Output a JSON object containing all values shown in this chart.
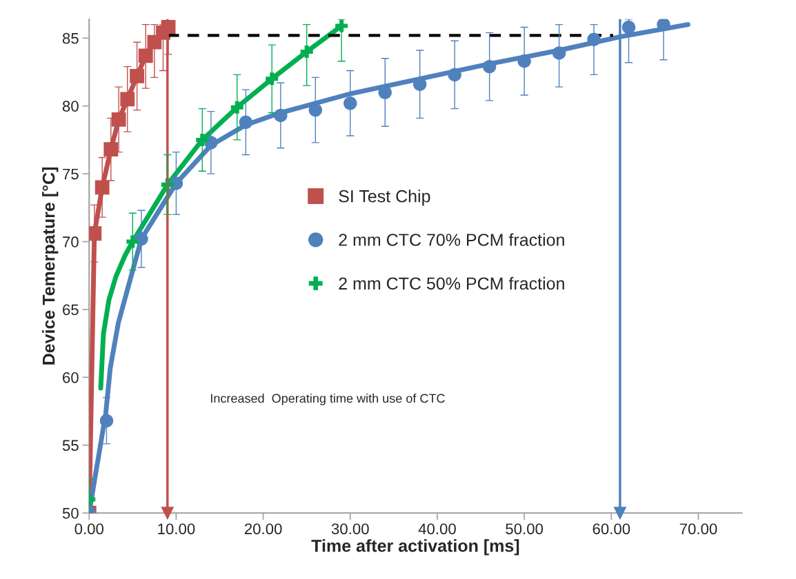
{
  "chart_data": {
    "type": "scatter",
    "xlabel": "Time after activation [ms]",
    "ylabel": "Device Temerpature [°C]",
    "xlim": [
      0,
      75
    ],
    "ylim": [
      50,
      86.4
    ],
    "xticks": [
      {
        "value": 0,
        "label": "0.00"
      },
      {
        "value": 10,
        "label": "10.00"
      },
      {
        "value": 20,
        "label": "20.00"
      },
      {
        "value": 30,
        "label": "30.00"
      },
      {
        "value": 40,
        "label": "40.00"
      },
      {
        "value": 50,
        "label": "50.00"
      },
      {
        "value": 60,
        "label": "60.00"
      },
      {
        "value": 70,
        "label": "70.00"
      }
    ],
    "yticks": [
      50,
      55,
      60,
      65,
      70,
      75,
      80,
      85
    ],
    "grid": false,
    "legend": "center",
    "series": [
      {
        "type": "line",
        "name": "SI Test Chip",
        "color": "#c0504d",
        "marker": "square",
        "line_style": "solid",
        "x": [
          0,
          0.6,
          1.5,
          2.5,
          3.4,
          4.4,
          5.5,
          6.5,
          7.5,
          8.5,
          9.1
        ],
        "values": [
          50,
          70.6,
          74.0,
          76.8,
          79.0,
          80.5,
          82.2,
          83.7,
          84.7,
          85.4,
          85.8
        ],
        "errors": [
          null,
          2.1,
          2.2,
          2.3,
          2.4,
          2.4,
          2.5,
          [
            81.3,
            86.0
          ],
          [
            82.1,
            86.0
          ],
          [
            82.6,
            86.0
          ],
          [
            83.8,
            86.3
          ]
        ]
      },
      {
        "type": "line",
        "color": "#00b050",
        "marker": "none",
        "line_style": "solid",
        "x": [
          1.33,
          1.64,
          2.27,
          3.06,
          4.14,
          5.0,
          9.0,
          13.0,
          17.0,
          21.0,
          25.0,
          29.0
        ],
        "values": [
          59.2,
          63.2,
          65.7,
          67.4,
          69.0,
          70.0,
          74.2,
          77.5,
          79.9,
          82.0,
          84.0,
          85.9
        ]
      },
      {
        "type": "line",
        "color": "#4f81bd",
        "marker": "none",
        "line_style": "solid",
        "x": [
          0,
          0.59,
          1.9,
          2.43,
          3.35,
          4.8,
          6.0,
          10.0,
          14.0,
          18.0,
          22.0,
          30.0,
          38.0,
          46.0,
          54.0,
          61.0,
          68.8
        ],
        "values": [
          50,
          52.3,
          57.3,
          60.7,
          64.0,
          67.4,
          70.2,
          74.3,
          77.1,
          78.6,
          79.5,
          80.9,
          82.0,
          83.1,
          84.1,
          85.1,
          86.0
        ]
      },
      {
        "name": "2 mm CTC 70% PCM fraction",
        "color": "#4f81bd",
        "marker": "circle",
        "x": [
          0,
          2,
          6,
          10,
          14,
          18,
          22,
          26,
          30,
          34,
          38,
          42,
          46,
          50,
          54,
          58,
          62,
          66
        ],
        "values": [
          50,
          56.8,
          70.2,
          74.3,
          77.3,
          78.8,
          79.3,
          79.7,
          80.2,
          81.0,
          81.6,
          82.3,
          82.9,
          83.3,
          83.9,
          84.9,
          85.8,
          86.0
        ],
        "errors": [
          null,
          1.7,
          2.1,
          2.3,
          2.3,
          2.4,
          2.4,
          2.4,
          2.4,
          2.5,
          2.5,
          2.5,
          2.5,
          2.5,
          [
            81.4,
            86.0
          ],
          [
            82.3,
            86.0
          ],
          [
            83.2,
            86.4
          ],
          [
            83.4,
            86.4
          ]
        ]
      },
      {
        "name": "2 mm CTC 50% PCM fraction",
        "color": "#00b050",
        "marker": "cross",
        "x": [
          0,
          5,
          9,
          13,
          17,
          21,
          25,
          29
        ],
        "values": [
          51.0,
          70.0,
          74.2,
          77.5,
          79.9,
          82.0,
          84.0,
          85.9
        ],
        "errors": [
          1.5,
          2.1,
          2.2,
          2.3,
          2.4,
          2.5,
          [
            81.5,
            86.0
          ],
          [
            83.3,
            86.4
          ]
        ]
      },
      {
        "type": "line",
        "color": "#000000",
        "marker": "none",
        "line_style": "dashed",
        "x": [
          9.0,
          60.2
        ],
        "values": [
          85.2,
          85.2
        ]
      }
    ],
    "ref_lines": [
      {
        "axis": "x",
        "value": 9.0,
        "color": "#c0504d"
      },
      {
        "axis": "x",
        "value": 61.0,
        "color": "#4f81bd"
      }
    ],
    "annotations": [
      "Increased  Operating time with use of CTC"
    ]
  }
}
